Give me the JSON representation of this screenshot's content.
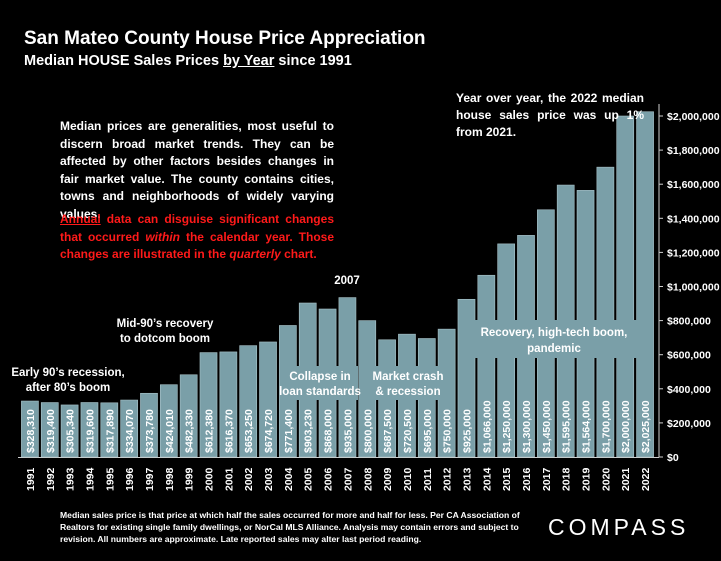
{
  "header": {
    "title": "San Mateo County House Price Appreciation",
    "subtitle_pre": "Median HOUSE Sales Prices ",
    "subtitle_underlined": "by Year",
    "subtitle_post": " since 1991"
  },
  "notes": {
    "general": "Median prices are generalities, most useful to discern broad market trends. They can be affected by other factors besides changes in fair market value. The county contains cities, towns and neighborhoods of widely varying values.",
    "annual_p1": "Annual",
    "annual_p2": " data can disguise significant changes that occurred ",
    "annual_p3": "within",
    "annual_p4": " the calendar year. Those changes are illustrated in the ",
    "annual_p5": "quarterly",
    "annual_p6": " chart.",
    "yoy": "Year over year, the 2022 median house sales price was up 1% from 2021."
  },
  "footer": {
    "disclaimer": "Median sales price is that price at which half the sales occurred for more and half for less. Per CA Association of Realtors for existing single family dwellings, or NorCal MLS Alliance. Analysis may contain errors and subject to revision. All numbers are approximate. Late reported sales may alter last period reading.",
    "logo": "COMPASS"
  },
  "colors": {
    "background": "#000000",
    "bar": "#7a9fa8",
    "bar_edge": "#a9c3c9",
    "label_box": "#7a9fa8",
    "red_text": "#ff1a1a"
  },
  "chart_data": {
    "type": "bar",
    "categories": [
      "1991",
      "1992",
      "1993",
      "1994",
      "1995",
      "1996",
      "1997",
      "1998",
      "1999",
      "2000",
      "2001",
      "2002",
      "2003",
      "2004",
      "2005",
      "2006",
      "2007",
      "2008",
      "2009",
      "2010",
      "2011",
      "2012",
      "2013",
      "2014",
      "2015",
      "2016",
      "2017",
      "2018",
      "2019",
      "2020",
      "2021",
      "2022"
    ],
    "values": [
      328310,
      319400,
      305340,
      319600,
      317890,
      334070,
      373780,
      424010,
      482330,
      612380,
      616370,
      653250,
      674720,
      771400,
      903230,
      868000,
      935000,
      800000,
      687500,
      720500,
      695000,
      750000,
      925000,
      1066000,
      1250000,
      1300000,
      1450000,
      1595000,
      1564000,
      1700000,
      2000000,
      2025000
    ],
    "data_labels": [
      "$328,310",
      "$319,400",
      "$305,340",
      "$319,600",
      "$317,890",
      "$334,070",
      "$373,780",
      "$424,010",
      "$482,330",
      "$612,380",
      "$616,370",
      "$653,250",
      "$674,720",
      "$771,400",
      "$903,230",
      "$868,000",
      "$935,000",
      "$800,000",
      "$687,500",
      "$720,500",
      "$695,000",
      "$750,000",
      "$925,000",
      "$1,066,000",
      "$1,250,000",
      "$1,300,000",
      "$1,450,000",
      "$1,595,000",
      "$1,564,000",
      "$1,700,000",
      "$2,000,000",
      "$2,025,000"
    ],
    "ylim": [
      0,
      2000000
    ],
    "y_ticks": [
      "$0",
      "$200,000",
      "$400,000",
      "$600,000",
      "$800,000",
      "$1,000,000",
      "$1,200,000",
      "$1,400,000",
      "$1,600,000",
      "$1,800,000",
      "$2,000,000"
    ],
    "y_axis_side": "right",
    "annotations": [
      {
        "id": "early90s",
        "line1": "Early 90’s recession,",
        "line2": "after 80’s boom"
      },
      {
        "id": "mid90s",
        "line1": "Mid-90’s recovery",
        "line2": "to dotcom boom"
      },
      {
        "id": "peak2007",
        "line1": "2007",
        "line2": ""
      },
      {
        "id": "collapse",
        "line1": "Collapse in",
        "line2": "loan standards"
      },
      {
        "id": "crash",
        "line1": "Market crash",
        "line2": "& recession"
      },
      {
        "id": "recovery",
        "line1": "Recovery, high-tech boom,",
        "line2": "pandemic"
      }
    ]
  }
}
